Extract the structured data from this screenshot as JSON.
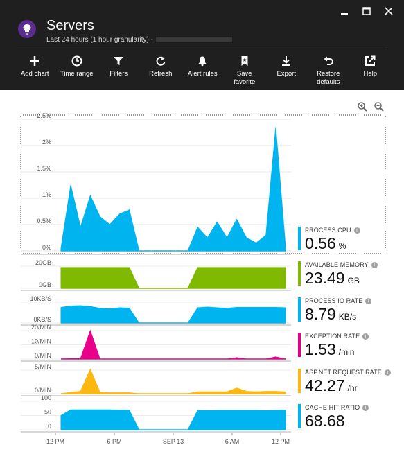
{
  "header": {
    "title": "Servers",
    "subtitle": "Last 24 hours (1 hour granularity) -"
  },
  "toolbar": [
    {
      "label": "Add chart",
      "icon": "plus-icon"
    },
    {
      "label": "Time range",
      "icon": "clock-icon"
    },
    {
      "label": "Filters",
      "icon": "filter-icon"
    },
    {
      "label": "Refresh",
      "icon": "refresh-icon"
    },
    {
      "label": "Alert rules",
      "icon": "bell-icon"
    },
    {
      "label": "Save\nfavorite",
      "icon": "bookmark-icon"
    },
    {
      "label": "Export",
      "icon": "download-icon"
    },
    {
      "label": "Restore\ndefaults",
      "icon": "undo-icon"
    },
    {
      "label": "Help",
      "icon": "external-link-icon"
    }
  ],
  "colors": {
    "header_bg": "#1f1f1f",
    "cpu": "#00b4f0",
    "memory": "#7fba00",
    "io": "#00b4f0",
    "exception": "#e8008a",
    "request": "#fcb711",
    "cache": "#00b4f0"
  },
  "x_axis": {
    "ticks": [
      "12 PM",
      "6 PM",
      "SEP 13",
      "6 AM",
      "12 PM"
    ]
  },
  "metrics": {
    "cpu": {
      "name": "PROCESS CPU",
      "value": "0.56",
      "unit": "%"
    },
    "memory": {
      "name": "AVAILABLE MEMORY",
      "value": "23.49",
      "unit": "GB"
    },
    "io": {
      "name": "PROCESS IO RATE",
      "value": "8.79",
      "unit": "KB/s"
    },
    "exception": {
      "name": "EXCEPTION RATE",
      "value": "1.53",
      "unit": "/min"
    },
    "request": {
      "name": "ASP.NET REQUEST RATE",
      "value": "42.27",
      "unit": "/hr"
    },
    "cache": {
      "name": "CACHE HIT RATIO",
      "value": "68.68",
      "unit": ""
    }
  },
  "chart_data": [
    {
      "type": "area",
      "id": "cpu",
      "yticks": [
        "2.5%",
        "2%",
        "1.5%",
        "1%",
        "0.5%",
        "0%"
      ],
      "ylim": [
        0,
        2.5
      ],
      "x": [
        0,
        1,
        2,
        3,
        4,
        5,
        6,
        7,
        8,
        9,
        10,
        11,
        12,
        13,
        14,
        15,
        16,
        17,
        18,
        19,
        20,
        21,
        22,
        23,
        24
      ],
      "values": [
        0.05,
        1.25,
        0.45,
        1.05,
        0.65,
        0.5,
        0.7,
        0.78,
        0,
        0,
        0,
        0,
        0,
        0,
        0.45,
        0.25,
        0.55,
        0.25,
        0.6,
        0.25,
        0.15,
        0.3,
        2.35,
        0.08,
        null
      ],
      "grid": true
    },
    {
      "type": "area",
      "id": "memory",
      "yticks": [
        "20GB",
        "0GB"
      ],
      "ylim": [
        0,
        25
      ],
      "x": [
        0,
        1,
        2,
        3,
        4,
        5,
        6,
        7,
        8,
        9,
        10,
        11,
        12,
        13,
        14,
        15,
        16,
        17,
        18,
        19,
        20,
        21,
        22,
        23
      ],
      "values": [
        23.5,
        23.5,
        23.5,
        23.5,
        23.5,
        23.5,
        23.5,
        23.5,
        0,
        0,
        0,
        0,
        0,
        0,
        23.5,
        23.5,
        23.5,
        23.5,
        23.5,
        23.5,
        23.5,
        23.5,
        23.5,
        23.5
      ]
    },
    {
      "type": "area",
      "id": "io",
      "yticks": [
        "10KB/S",
        "0KB/S"
      ],
      "ylim": [
        0,
        12
      ],
      "x": [
        0,
        1,
        2,
        3,
        4,
        5,
        6,
        7,
        8,
        9,
        10,
        11,
        12,
        13,
        14,
        15,
        16,
        17,
        18,
        19,
        20,
        21,
        22,
        23
      ],
      "values": [
        9,
        9.8,
        10,
        9.5,
        8.5,
        8.2,
        8.8,
        8.6,
        0,
        0,
        0,
        0,
        0,
        0,
        8.8,
        9.2,
        8.8,
        8.5,
        9,
        9,
        9,
        9,
        9,
        8.8
      ]
    },
    {
      "type": "area",
      "id": "exception",
      "yticks": [
        "20/MIN",
        "10/MIN",
        "0/MIN"
      ],
      "ylim": [
        0,
        20
      ],
      "x": [
        0,
        1,
        2,
        3,
        4,
        5,
        6,
        7,
        8,
        9,
        10,
        11,
        12,
        13,
        14,
        15,
        16,
        17,
        18,
        19,
        20,
        21,
        22,
        23
      ],
      "values": [
        0,
        0.3,
        0.3,
        20,
        0,
        0,
        0,
        0,
        0,
        0,
        0,
        0,
        0,
        0,
        0,
        0,
        0,
        0,
        1,
        0,
        0,
        0,
        1.5,
        0
      ]
    },
    {
      "type": "area",
      "id": "request",
      "yticks": [
        "5/MIN",
        "0/MIN"
      ],
      "ylim": [
        0,
        5
      ],
      "x": [
        0,
        1,
        2,
        3,
        4,
        5,
        6,
        7,
        8,
        9,
        10,
        11,
        12,
        13,
        14,
        15,
        16,
        17,
        18,
        19,
        20,
        21,
        22,
        23
      ],
      "values": [
        0,
        0.3,
        0.5,
        5.2,
        0.3,
        0.2,
        0.2,
        0.2,
        0,
        0,
        0,
        0,
        0,
        0,
        0.4,
        0.4,
        0.4,
        0.4,
        1.2,
        0.5,
        0.4,
        0.5,
        0.5,
        0.4
      ]
    },
    {
      "type": "area",
      "id": "cache",
      "yticks": [
        "100",
        "50",
        "0"
      ],
      "ylim": [
        0,
        100
      ],
      "x": [
        0,
        1,
        2,
        3,
        4,
        5,
        6,
        7,
        8,
        9,
        10,
        11,
        12,
        13,
        14,
        15,
        16,
        17,
        18,
        19,
        20,
        21,
        22,
        23
      ],
      "values": [
        50,
        70,
        70,
        70,
        70,
        70,
        69,
        69,
        0,
        0,
        0,
        0,
        0,
        0,
        68,
        67,
        68,
        68,
        68,
        68,
        68,
        67,
        68,
        69
      ]
    }
  ]
}
